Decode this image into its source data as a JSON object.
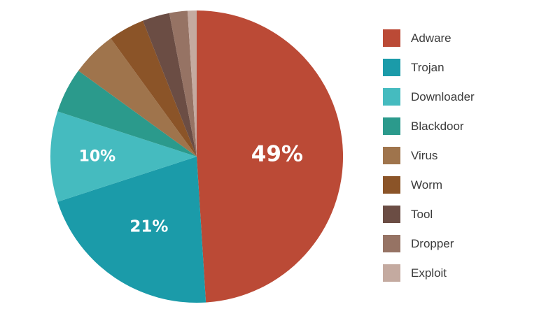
{
  "chart_data": {
    "type": "pie",
    "categories": [
      "Adware",
      "Trojan",
      "Downloader",
      "Blackdoor",
      "Virus",
      "Worm",
      "Tool",
      "Dropper",
      "Exploit"
    ],
    "values": [
      49,
      21,
      10,
      5,
      5,
      4,
      3,
      2,
      1
    ],
    "data_labels": [
      "49%",
      "21%",
      "10%",
      "",
      "",
      "",
      "",
      "",
      ""
    ],
    "colors": [
      "#bb4a36",
      "#1b9ba9",
      "#45bbbf",
      "#2b9a8c",
      "#9f744c",
      "#8b5428",
      "#6b4d44",
      "#967364",
      "#c4aaa0"
    ],
    "legend": {
      "position": "right",
      "entries": [
        "Adware",
        "Trojan",
        "Downloader",
        "Blackdoor",
        "Virus",
        "Worm",
        "Tool",
        "Dropper",
        "Exploit"
      ]
    },
    "title": "",
    "start_angle": "12 o'clock",
    "direction": "clockwise"
  }
}
